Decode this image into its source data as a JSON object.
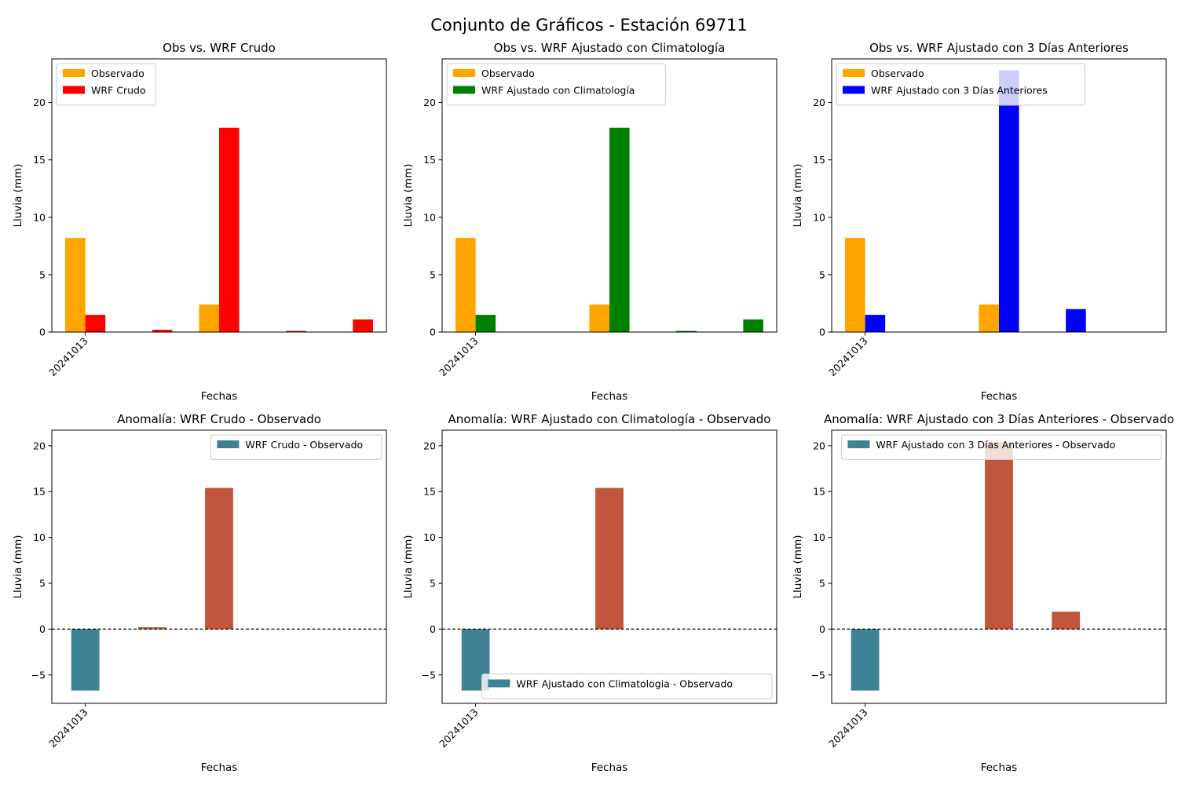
{
  "figure": {
    "title": "Conjunto de Gráficos - Estación 69711"
  },
  "colors": {
    "observado": "#ffa500",
    "wrf_crudo": "#ff0000",
    "wrf_clim": "#008000",
    "wrf_3d": "#0000ff",
    "anom_negative": "#3f8195",
    "anom_positive": "#c2553d"
  },
  "chart_data": [
    {
      "type": "bar",
      "title": "Obs vs. WRF Crudo",
      "xlabel": "Fechas",
      "ylabel": "Lluvia (mm)",
      "x_ticklabels": [
        "20241013"
      ],
      "ylim": [
        0,
        23.8
      ],
      "yticks": [
        0,
        5,
        10,
        15,
        20
      ],
      "legend": "top-left",
      "grid": false,
      "series": [
        {
          "name": "Observado",
          "color_key": "observado",
          "offset": 0,
          "points": [
            [
              0,
              8.2
            ],
            [
              2,
              2.4
            ]
          ]
        },
        {
          "name": "WRF Crudo",
          "color_key": "wrf_crudo",
          "offset": 1,
          "points": [
            [
              0,
              1.5
            ],
            [
              1,
              0.2
            ],
            [
              2,
              17.8
            ],
            [
              3,
              0.1
            ],
            [
              4,
              1.1
            ]
          ]
        }
      ]
    },
    {
      "type": "bar",
      "title": "Obs vs. WRF Ajustado con Climatología",
      "xlabel": "Fechas",
      "ylabel": "Lluvia (mm)",
      "x_ticklabels": [
        "20241013"
      ],
      "ylim": [
        0,
        23.8
      ],
      "yticks": [
        0,
        5,
        10,
        15,
        20
      ],
      "legend": "top-left",
      "grid": false,
      "series": [
        {
          "name": "Observado",
          "color_key": "observado",
          "offset": 0,
          "points": [
            [
              0,
              8.2
            ],
            [
              2,
              2.4
            ]
          ]
        },
        {
          "name": "WRF Ajustado con Climatología",
          "color_key": "wrf_clim",
          "offset": 1,
          "points": [
            [
              0,
              1.5
            ],
            [
              2,
              17.8
            ],
            [
              3,
              0.1
            ],
            [
              4,
              1.1
            ]
          ]
        }
      ]
    },
    {
      "type": "bar",
      "title": "Obs vs. WRF Ajustado con 3 Días Anteriores",
      "xlabel": "Fechas",
      "ylabel": "Lluvia (mm)",
      "x_ticklabels": [
        "20241013"
      ],
      "ylim": [
        0,
        23.8
      ],
      "yticks": [
        0,
        5,
        10,
        15,
        20
      ],
      "legend": "top-left",
      "grid": false,
      "series": [
        {
          "name": "Observado",
          "color_key": "observado",
          "offset": 0,
          "points": [
            [
              0,
              8.2
            ],
            [
              2,
              2.4
            ]
          ]
        },
        {
          "name": "WRF Ajustado con 3 Días Anteriores",
          "color_key": "wrf_3d",
          "offset": 1,
          "points": [
            [
              0,
              1.5
            ],
            [
              2,
              22.8
            ],
            [
              3,
              2.0
            ]
          ]
        }
      ]
    },
    {
      "type": "bar",
      "title": "Anomalía: WRF Crudo - Observado",
      "xlabel": "Fechas",
      "ylabel": "Lluvia (mm)",
      "x_ticklabels": [
        "20241013"
      ],
      "ylim": [
        -8.1,
        21.7
      ],
      "yticks": [
        -5,
        0,
        5,
        10,
        15,
        20
      ],
      "legend": "top-right",
      "grid": false,
      "zero_line": true,
      "series": [
        {
          "name": "WRF Crudo - Observado",
          "legend_color_key": "anom_negative",
          "points": [
            [
              0,
              -6.7
            ],
            [
              1,
              0.2
            ],
            [
              2,
              15.4
            ]
          ]
        }
      ]
    },
    {
      "type": "bar",
      "title": "Anomalía: WRF Ajustado con Climatología - Observado",
      "xlabel": "Fechas",
      "ylabel": "Lluvia (mm)",
      "x_ticklabels": [
        "20241013"
      ],
      "ylim": [
        -8.1,
        21.7
      ],
      "yticks": [
        -5,
        0,
        5,
        10,
        15,
        20
      ],
      "legend": "bottom-right",
      "grid": false,
      "zero_line": true,
      "series": [
        {
          "name": "WRF Ajustado con Climatologia - Observado",
          "legend_color_key": "anom_negative",
          "points": [
            [
              0,
              -6.7
            ],
            [
              2,
              15.4
            ]
          ]
        }
      ]
    },
    {
      "type": "bar",
      "title": "Anomalía: WRF Ajustado con 3 Días Anteriores - Observado",
      "xlabel": "Fechas",
      "ylabel": "Lluvia (mm)",
      "x_ticklabels": [
        "20241013"
      ],
      "ylim": [
        -8.1,
        21.7
      ],
      "yticks": [
        -5,
        0,
        5,
        10,
        15,
        20
      ],
      "legend": "top-right",
      "grid": false,
      "zero_line": true,
      "series": [
        {
          "name": "WRF Ajustado con 3 Días Anteriores - Observado",
          "legend_color_key": "anom_negative",
          "points": [
            [
              0,
              -6.7
            ],
            [
              2,
              20.4
            ],
            [
              3,
              1.9
            ]
          ]
        }
      ]
    }
  ]
}
